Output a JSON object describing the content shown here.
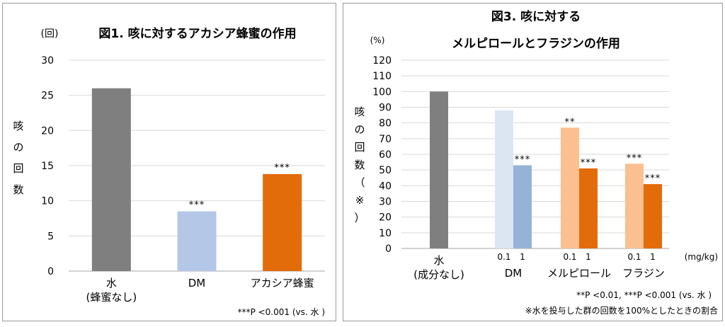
{
  "chart_data": [
    {
      "type": "bar",
      "title": "図1. 咳に対するアカシア蜂蜜の作用",
      "ylabel_chars": [
        "咳",
        "の",
        "回",
        "数"
      ],
      "y_unit": "(回)",
      "ylim": [
        0,
        30
      ],
      "yticks": [
        "0",
        "5",
        "10",
        "15",
        "20",
        "25",
        "30"
      ],
      "grid": true,
      "categories": [
        {
          "line1": "水",
          "line2": "(蜂蜜なし)"
        },
        {
          "line1": "DM",
          "line2": ""
        },
        {
          "line1": "アカシア蜂蜜",
          "line2": ""
        }
      ],
      "values": [
        26,
        8.5,
        13.8
      ],
      "colors": [
        "#7f7f7f",
        "#b4c7e7",
        "#e26b0a"
      ],
      "significance": [
        "",
        "***",
        "***"
      ],
      "footnote": "***P <0.001 (vs. 水 )"
    },
    {
      "type": "bar",
      "title_line1": "図3. 咳に対する",
      "title_line2": "メルピロールとフラジンの作用",
      "ylabel_chars": [
        "咳",
        "の",
        "回",
        "数",
        "（",
        "※",
        "）"
      ],
      "y_unit": "(%)",
      "ylim": [
        0,
        120
      ],
      "yticks": [
        "0",
        "10",
        "20",
        "30",
        "40",
        "50",
        "60",
        "70",
        "80",
        "90",
        "100",
        "110",
        "120"
      ],
      "grid": true,
      "groups": [
        {
          "label_line1": "水",
          "label_line2": "(成分なし)",
          "bars": [
            {
              "dose": "",
              "value": 100,
              "color": "#7f7f7f",
              "sig": ""
            }
          ]
        },
        {
          "label_line1": "DM",
          "label_line2": "",
          "bars": [
            {
              "dose": "0.1",
              "value": 88,
              "color": "#dce6f2",
              "sig": ""
            },
            {
              "dose": "1",
              "value": 53,
              "color": "#95b3d7",
              "sig": "***"
            }
          ]
        },
        {
          "label_line1": "メルピロール",
          "label_line2": "",
          "bars": [
            {
              "dose": "0.1",
              "value": 77,
              "color": "#fac090",
              "sig": "**"
            },
            {
              "dose": "1",
              "value": 51,
              "color": "#e26b0a",
              "sig": "***"
            }
          ]
        },
        {
          "label_line1": "フラジン",
          "label_line2": "",
          "bars": [
            {
              "dose": "0.1",
              "value": 54,
              "color": "#fac090",
              "sig": "***"
            },
            {
              "dose": "1",
              "value": 41,
              "color": "#e26b0a",
              "sig": "***"
            }
          ]
        }
      ],
      "dose_unit": "(mg/kg)",
      "footnote1": "**P <0.01, ***P <0.001 (vs. 水 )",
      "footnote2": "※水を投与した群の回数を100%としたときの割合"
    }
  ]
}
